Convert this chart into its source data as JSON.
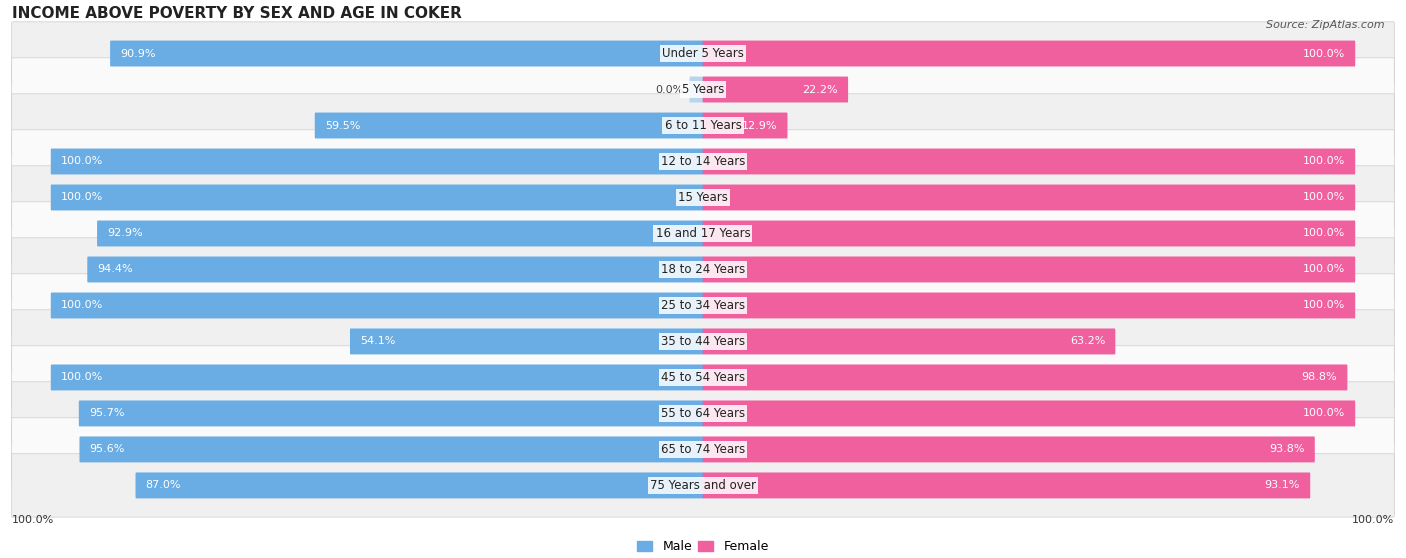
{
  "title": "INCOME ABOVE POVERTY BY SEX AND AGE IN COKER",
  "source": "Source: ZipAtlas.com",
  "categories": [
    "Under 5 Years",
    "5 Years",
    "6 to 11 Years",
    "12 to 14 Years",
    "15 Years",
    "16 and 17 Years",
    "18 to 24 Years",
    "25 to 34 Years",
    "35 to 44 Years",
    "45 to 54 Years",
    "55 to 64 Years",
    "65 to 74 Years",
    "75 Years and over"
  ],
  "male_values": [
    90.9,
    0.0,
    59.5,
    100.0,
    100.0,
    92.9,
    94.4,
    100.0,
    54.1,
    100.0,
    95.7,
    95.6,
    87.0
  ],
  "female_values": [
    100.0,
    22.2,
    12.9,
    100.0,
    100.0,
    100.0,
    100.0,
    100.0,
    63.2,
    98.8,
    100.0,
    93.8,
    93.1
  ],
  "male_color": "#6aace4",
  "female_color": "#f0609e",
  "male_color_light": "#b8d5f0",
  "female_color_light": "#f5b0cf",
  "row_bg_even": "#f0f0f0",
  "row_bg_odd": "#fafafa",
  "title_fontsize": 11,
  "label_fontsize": 8.5,
  "value_fontsize": 8,
  "legend_fontsize": 9,
  "bottom_label_male": "100.0%",
  "bottom_label_female": "100.0%"
}
